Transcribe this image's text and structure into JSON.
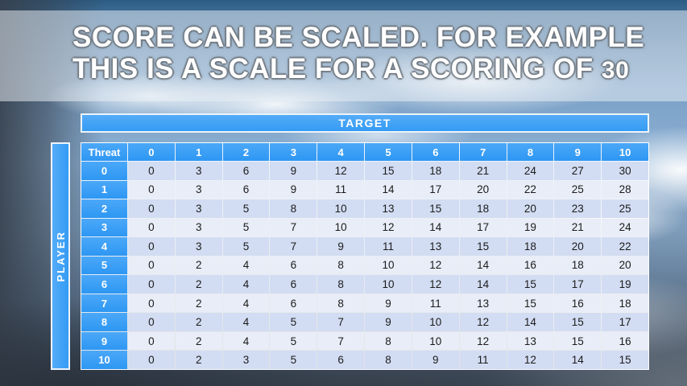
{
  "slide": {
    "title_line1": "SCORE CAN BE SCALED. FOR EXAMPLE",
    "title_line2": "THIS IS A SCALE FOR A SCORING OF",
    "scale_value": "30"
  },
  "table": {
    "target_label": "TARGET",
    "player_label": "PLAYER",
    "threat_label": "Threat",
    "column_headers": [
      "0",
      "1",
      "2",
      "3",
      "4",
      "5",
      "6",
      "7",
      "8",
      "9",
      "10"
    ],
    "row_headers": [
      "0",
      "1",
      "2",
      "3",
      "4",
      "5",
      "6",
      "7",
      "8",
      "9",
      "10"
    ],
    "rows": [
      [
        0,
        3,
        6,
        9,
        12,
        15,
        18,
        21,
        24,
        27,
        30
      ],
      [
        0,
        3,
        6,
        9,
        11,
        14,
        17,
        20,
        22,
        25,
        28
      ],
      [
        0,
        3,
        5,
        8,
        10,
        13,
        15,
        18,
        20,
        23,
        25
      ],
      [
        0,
        3,
        5,
        7,
        10,
        12,
        14,
        17,
        19,
        21,
        24
      ],
      [
        0,
        3,
        5,
        7,
        9,
        11,
        13,
        15,
        18,
        20,
        22
      ],
      [
        0,
        2,
        4,
        6,
        8,
        10,
        12,
        14,
        16,
        18,
        20
      ],
      [
        0,
        2,
        4,
        6,
        8,
        10,
        12,
        14,
        15,
        17,
        19
      ],
      [
        0,
        2,
        4,
        6,
        8,
        9,
        11,
        13,
        15,
        16,
        18
      ],
      [
        0,
        2,
        4,
        5,
        7,
        9,
        10,
        12,
        14,
        15,
        17
      ],
      [
        0,
        2,
        4,
        5,
        7,
        8,
        10,
        12,
        13,
        15,
        16
      ],
      [
        0,
        2,
        3,
        5,
        6,
        8,
        9,
        11,
        12,
        14,
        15
      ]
    ]
  },
  "colors": {
    "header_blue": "#2f9bf4",
    "row_even": "#d2ddf3",
    "row_odd": "#e9edf8",
    "cell_text": "#1b1b1b",
    "title_text": "#ffffff"
  }
}
